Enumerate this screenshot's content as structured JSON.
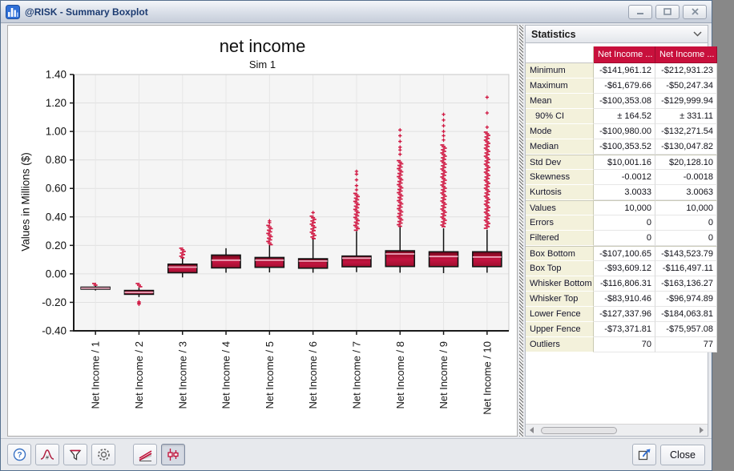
{
  "window": {
    "title": "@RISK - Summary Boxplot"
  },
  "chart_data": {
    "type": "boxplot",
    "title": "net income",
    "subtitle": "Sim 1",
    "ylabel": "Values in Millions ($)",
    "ylim": [
      -0.4,
      1.4
    ],
    "ytick_step": 0.2,
    "grid": true,
    "units": "Millions ($)",
    "categories": [
      "Net Income / 1",
      "Net Income / 2",
      "Net Income / 3",
      "Net Income / 4",
      "Net Income / 5",
      "Net Income / 6",
      "Net Income / 7",
      "Net Income / 8",
      "Net Income / 9",
      "Net Income / 10"
    ],
    "boxes": [
      {
        "whisker_low": -0.1168,
        "box_low": -0.1071,
        "median": -0.1004,
        "box_high": -0.0936,
        "whisker_high": -0.0839,
        "outliers_high": [
          -0.08,
          -0.063
        ],
        "outliers_low": [
          -0.135,
          -0.119
        ],
        "outlier_dots": []
      },
      {
        "whisker_low": -0.1631,
        "box_low": -0.1435,
        "median": -0.13,
        "box_high": -0.1165,
        "whisker_high": -0.097,
        "outliers_high": [
          -0.094,
          -0.063
        ],
        "outliers_low": [
          -0.178,
          -0.166
        ],
        "outlier_dots": [
          -0.196,
          -0.205,
          -0.213
        ]
      },
      {
        "whisker_low": -0.025,
        "box_low": 0.008,
        "median": 0.047,
        "box_high": 0.068,
        "whisker_high": 0.112,
        "outliers_high": [
          0.116,
          0.185
        ],
        "outliers_low": [
          -0.088,
          -0.03
        ],
        "outlier_dots": []
      },
      {
        "whisker_low": 0.008,
        "box_low": 0.042,
        "median": 0.096,
        "box_high": 0.132,
        "whisker_high": 0.18,
        "outliers_high": null,
        "outliers_low": null,
        "outlier_dots": []
      },
      {
        "whisker_low": 0.01,
        "box_low": 0.046,
        "median": 0.096,
        "box_high": 0.115,
        "whisker_high": 0.205,
        "outliers_high": [
          0.21,
          0.345
        ],
        "outliers_low": null,
        "outlier_dots": [
          0.36,
          0.372
        ]
      },
      {
        "whisker_low": 0.008,
        "box_low": 0.04,
        "median": 0.09,
        "box_high": 0.106,
        "whisker_high": 0.245,
        "outliers_high": [
          0.25,
          0.41
        ],
        "outliers_low": null,
        "outlier_dots": [
          0.43
        ]
      },
      {
        "whisker_low": 0.012,
        "box_low": 0.05,
        "median": 0.11,
        "box_high": 0.125,
        "whisker_high": 0.3,
        "outliers_high": [
          0.305,
          0.57
        ],
        "outliers_low": null,
        "outlier_dots": [
          0.59,
          0.62,
          0.66,
          0.7,
          0.72
        ]
      },
      {
        "whisker_low": 0.008,
        "box_low": 0.052,
        "median": 0.14,
        "box_high": 0.162,
        "whisker_high": 0.33,
        "outliers_high": [
          0.335,
          0.8
        ],
        "outliers_low": null,
        "outlier_dots": [
          0.84,
          0.87,
          0.89,
          0.93,
          0.97,
          1.01
        ]
      },
      {
        "whisker_low": 0.005,
        "box_low": 0.051,
        "median": 0.122,
        "box_high": 0.155,
        "whisker_high": 0.32,
        "outliers_high": [
          0.33,
          0.91
        ],
        "outliers_low": null,
        "outlier_dots": [
          0.94,
          0.97,
          1.0,
          1.04,
          1.08,
          1.12
        ]
      },
      {
        "whisker_low": 0.008,
        "box_low": 0.051,
        "median": 0.118,
        "box_high": 0.155,
        "whisker_high": 0.31,
        "outliers_high": [
          0.32,
          1.0
        ],
        "outliers_low": null,
        "outlier_dots": [
          1.03,
          1.13,
          1.24
        ]
      }
    ],
    "colors": {
      "box_fill": "#C31440",
      "box_fill_dark": "#70081E",
      "box_stroke": "#141414",
      "median_line": "#EFA9BE",
      "outlier": "#D01540",
      "plot_bg": "#F5F5F5",
      "grid_line": "#E0E0E0",
      "axis": "#1A1A1A",
      "header_red": "#C8103C",
      "accent_blue": "#2F6BD8"
    }
  },
  "stats_panel": {
    "title": "Statistics",
    "columns": [
      "Net Income ...",
      "Net Income ..."
    ],
    "rows": [
      {
        "label": "Minimum",
        "values": [
          "-$141,961.12",
          "-$212,931.23"
        ]
      },
      {
        "label": "Maximum",
        "values": [
          "-$61,679.66",
          "-$50,247.34"
        ]
      },
      {
        "label": "Mean",
        "values": [
          "-$100,353.08",
          "-$129,999.94"
        ]
      },
      {
        "label": "90% CI",
        "indent": true,
        "values": [
          "± 164.52",
          "± 331.11"
        ]
      },
      {
        "label": "Mode",
        "values": [
          "-$100,980.00",
          "-$132,271.54"
        ]
      },
      {
        "label": "Median",
        "values": [
          "-$100,353.52",
          "-$130,047.82"
        ]
      },
      {
        "label": "Std Dev",
        "group": true,
        "values": [
          "$10,001.16",
          "$20,128.10"
        ]
      },
      {
        "label": "Skewness",
        "values": [
          "-0.0012",
          "-0.0018"
        ]
      },
      {
        "label": "Kurtosis",
        "values": [
          "3.0033",
          "3.0063"
        ]
      },
      {
        "label": "Values",
        "group": true,
        "values": [
          "10,000",
          "10,000"
        ]
      },
      {
        "label": "Errors",
        "values": [
          "0",
          "0"
        ]
      },
      {
        "label": "Filtered",
        "values": [
          "0",
          "0"
        ]
      },
      {
        "label": "Box Bottom",
        "group": true,
        "values": [
          "-$107,100.65",
          "-$143,523.79"
        ]
      },
      {
        "label": "Box Top",
        "values": [
          "-$93,609.12",
          "-$116,497.11"
        ]
      },
      {
        "label": "Whisker Bottom",
        "values": [
          "-$116,806.31",
          "-$163,136.27"
        ]
      },
      {
        "label": "Whisker Top",
        "values": [
          "-$83,910.46",
          "-$96,974.89"
        ]
      },
      {
        "label": "Lower Fence",
        "values": [
          "-$127,337.96",
          "-$184,063.81"
        ]
      },
      {
        "label": "Upper Fence",
        "values": [
          "-$73,371.81",
          "-$75,957.08"
        ]
      },
      {
        "label": "Outliers",
        "values": [
          "70",
          "77"
        ]
      }
    ]
  },
  "toolbar": {
    "buttons": [
      "help-icon",
      "distribution-icon",
      "filter-icon",
      "settings-icon",
      "trend-graph-icon",
      "boxplot-graph-icon"
    ],
    "active_button": "boxplot-graph-icon",
    "close_label": "Close"
  }
}
